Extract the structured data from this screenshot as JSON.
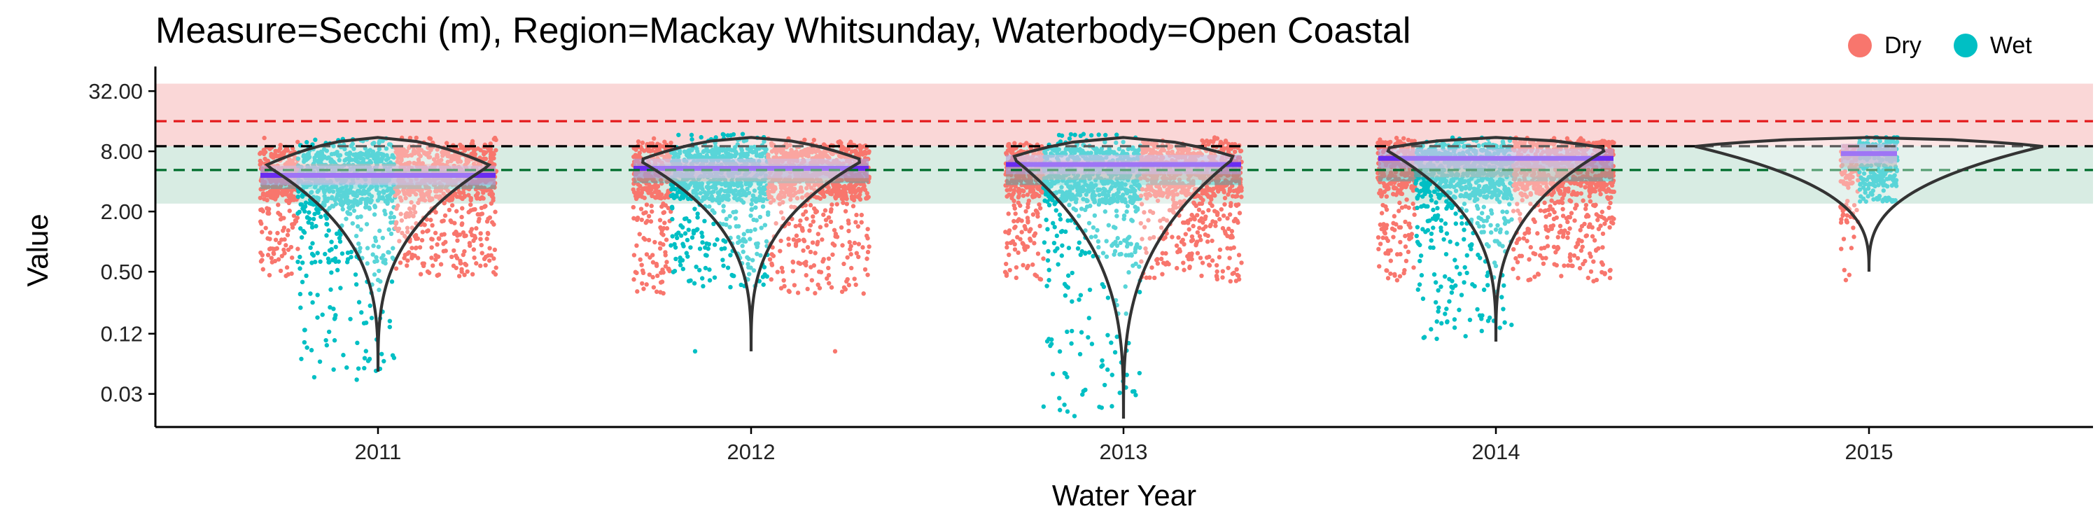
{
  "chart_data": {
    "type": "scatter",
    "title": "Measure=Secchi (m), Region=Mackay Whitsunday, Waterbody=Open Coastal",
    "xlabel": "Water Year",
    "ylabel": "Value",
    "y_scale": "log2",
    "ylim": [
      0.014,
      48
    ],
    "y_ticks": [
      0.03,
      0.12,
      0.5,
      2.0,
      8.0,
      32.0
    ],
    "y_tick_labels": [
      "0.03",
      "0.12",
      "0.50",
      "2.00",
      "8.00",
      "32.00"
    ],
    "x_categories": [
      "2011",
      "2012",
      "2013",
      "2014",
      "2015"
    ],
    "legend": {
      "position": "top-right",
      "entries": [
        {
          "name": "Dry",
          "color": "#F8766D"
        },
        {
          "name": "Wet",
          "color": "#00BFC4"
        }
      ]
    },
    "reference_lines": [
      {
        "value": 16.0,
        "color": "#e31a1c",
        "style": "dashed"
      },
      {
        "value": 9.0,
        "color": "#000000",
        "style": "dashed"
      },
      {
        "value": 5.2,
        "color": "#006d2c",
        "style": "dashed"
      }
    ],
    "reference_bands": [
      {
        "from": 9.0,
        "to": 38.0,
        "color": "#f4a6a6"
      },
      {
        "from": 2.4,
        "to": 9.0,
        "color": "#a8d5c0"
      }
    ],
    "series": [
      {
        "year": "2011",
        "wet": {
          "median": 4.2,
          "min": 0.04,
          "low": 0.6,
          "high": 11.0
        },
        "dry": {
          "median": 4.8,
          "min": 0.45,
          "low": 1.0,
          "high": 11.0
        },
        "violin": {
          "median": 5.8,
          "min": 0.05,
          "max": 11.0
        },
        "trend_level": 4.6
      },
      {
        "year": "2012",
        "wet": {
          "median": 4.8,
          "min": 0.35,
          "low": 0.9,
          "high": 12.0
        },
        "dry": {
          "median": 5.0,
          "min": 0.3,
          "low": 0.9,
          "high": 11.0
        },
        "violin": {
          "median": 6.5,
          "min": 0.08,
          "max": 11.0
        },
        "trend_level": 5.4
      },
      {
        "year": "2013",
        "wet": {
          "median": 4.6,
          "min": 0.02,
          "low": 0.7,
          "high": 12.0
        },
        "dry": {
          "median": 5.2,
          "min": 0.4,
          "low": 1.0,
          "high": 11.0
        },
        "violin": {
          "median": 7.0,
          "min": 0.017,
          "max": 11.0
        },
        "trend_level": 5.9
      },
      {
        "year": "2014",
        "wet": {
          "median": 5.0,
          "min": 0.1,
          "low": 0.9,
          "high": 11.0
        },
        "dry": {
          "median": 5.5,
          "min": 0.4,
          "low": 1.0,
          "high": 11.0
        },
        "violin": {
          "median": 8.5,
          "min": 0.1,
          "max": 11.0
        },
        "trend_level": 6.8
      },
      {
        "year": "2015",
        "wet": {
          "median": 6.5,
          "min": 2.5,
          "low": 3.0,
          "high": 11.0
        },
        "dry": {
          "median": 7.0,
          "min": 0.4,
          "low": 1.5,
          "high": 9.0
        },
        "violin": {
          "median": 9.0,
          "min": 0.5,
          "max": 11.0
        },
        "trend_level": 7.6
      }
    ]
  }
}
